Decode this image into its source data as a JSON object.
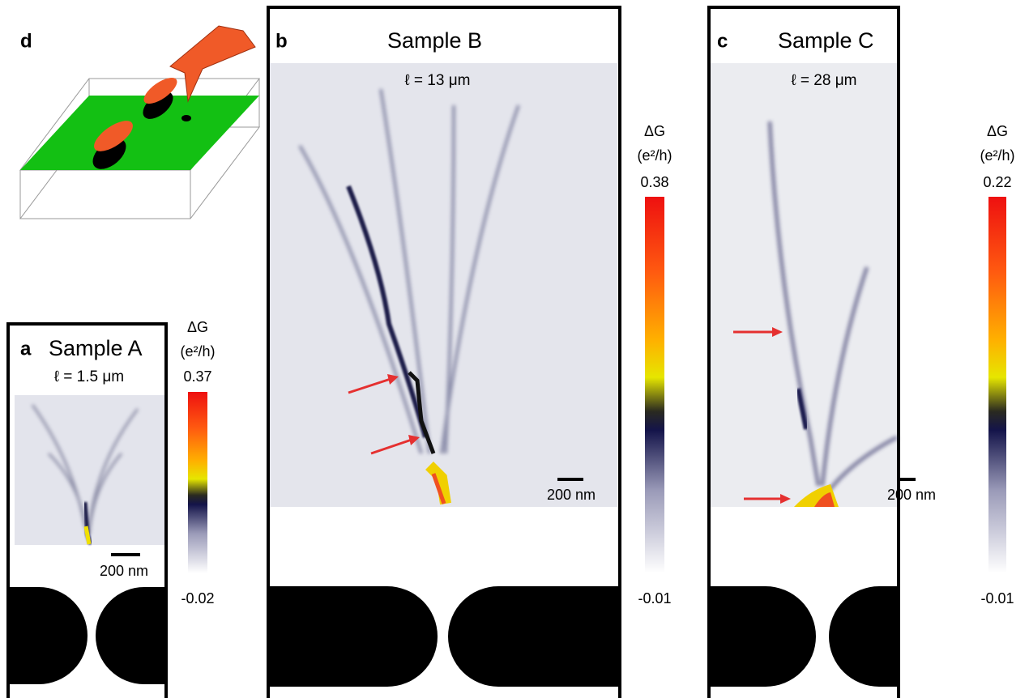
{
  "panels": [
    {
      "letter": "d"
    },
    {
      "letter": "a",
      "title": "Sample A",
      "mfp": "ℓ = 1.5 μm",
      "scale_bar": "200 nm",
      "colorbar": {
        "label": "ΔG",
        "unit": "(e²/h)",
        "max": "0.37",
        "min": "-0.02"
      }
    },
    {
      "letter": "b",
      "title": "Sample B",
      "mfp": "ℓ = 13 μm",
      "scale_bar": "200 nm",
      "colorbar": {
        "label": "ΔG",
        "unit": "(e²/h)",
        "max": "0.38",
        "min": "-0.01"
      }
    },
    {
      "letter": "c",
      "title": "Sample C",
      "mfp": "ℓ = 28 μm",
      "scale_bar": "200 nm",
      "colorbar": {
        "label": "ΔG",
        "unit": "(e²/h)",
        "max": "0.22",
        "min": "-0.01"
      }
    }
  ]
}
